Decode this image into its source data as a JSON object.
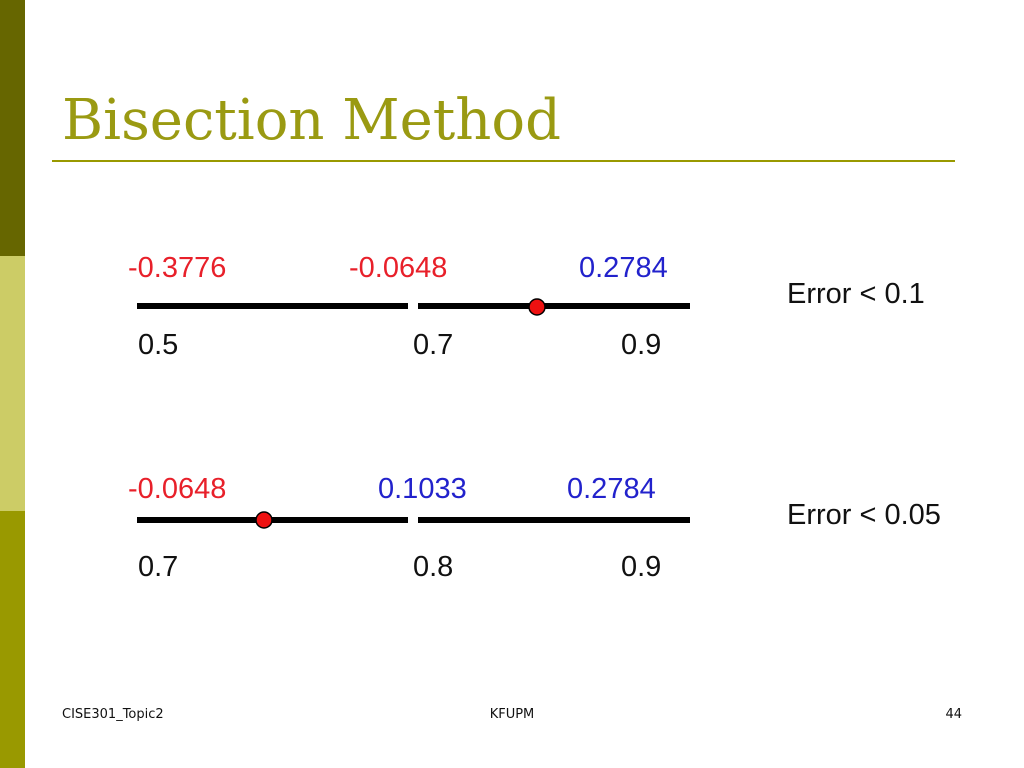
{
  "title": "Bisection Method",
  "rows": [
    {
      "function_values": [
        "-0.3776",
        "-0.0648",
        "0.2784"
      ],
      "x_labels": [
        "0.5",
        "0.7",
        "0.9"
      ],
      "error": "Error < 0.1"
    },
    {
      "function_values": [
        "-0.0648",
        "0.1033",
        "0.2784"
      ],
      "x_labels": [
        "0.7",
        "0.8",
        "0.9"
      ],
      "error": "Error < 0.05"
    }
  ],
  "footer": {
    "left": "CISE301_Topic2",
    "center": "KFUPM",
    "page": "44"
  }
}
